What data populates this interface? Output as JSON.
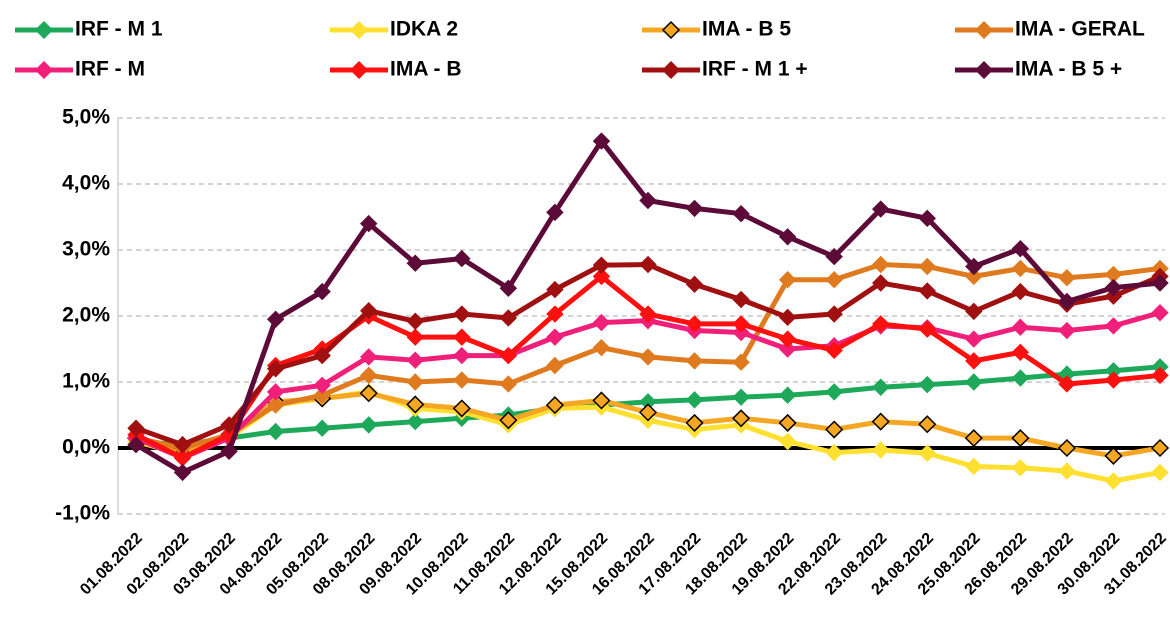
{
  "chart_data": {
    "type": "line",
    "categories": [
      "01.08.2022",
      "02.08.2022",
      "03.08.2022",
      "04.08.2022",
      "05.08.2022",
      "08.08.2022",
      "09.08.2022",
      "10.08.2022",
      "11.08.2022",
      "12.08.2022",
      "15.08.2022",
      "16.08.2022",
      "17.08.2022",
      "18.08.2022",
      "19.08.2022",
      "22.08.2022",
      "23.08.2022",
      "24.08.2022",
      "25.08.2022",
      "26.08.2022",
      "29.08.2022",
      "30.08.2022",
      "31.08.2022"
    ],
    "ylim": [
      -1,
      5
    ],
    "yticks": [
      {
        "value": -1,
        "label": "-1,0%"
      },
      {
        "value": 0,
        "label": "0,0%"
      },
      {
        "value": 1,
        "label": "1,0%"
      },
      {
        "value": 2,
        "label": "2,0%"
      },
      {
        "value": 3,
        "label": "3,0%"
      },
      {
        "value": 4,
        "label": "4,0%"
      },
      {
        "value": 5,
        "label": "5,0%"
      }
    ],
    "grid": true,
    "series": [
      {
        "name": "IRF - M 1",
        "color": "#1ea85a",
        "values": [
          0.1,
          0.05,
          0.15,
          0.25,
          0.3,
          0.35,
          0.4,
          0.45,
          0.5,
          0.6,
          0.65,
          0.7,
          0.73,
          0.77,
          0.8,
          0.85,
          0.92,
          0.96,
          1.0,
          1.06,
          1.12,
          1.17,
          1.23
        ]
      },
      {
        "name": "IDKA 2",
        "color": "#ffe030",
        "values": [
          0.1,
          -0.1,
          0.15,
          0.65,
          0.75,
          0.85,
          0.6,
          0.55,
          0.35,
          0.6,
          0.62,
          0.42,
          0.28,
          0.35,
          0.1,
          -0.07,
          -0.03,
          -0.08,
          -0.28,
          -0.3,
          -0.35,
          -0.5,
          -0.37
        ]
      },
      {
        "name": "IMA - B 5",
        "color": "#f5a623",
        "marker_edge": "#000000",
        "values": [
          0.15,
          -0.1,
          0.2,
          0.7,
          0.75,
          0.83,
          0.66,
          0.6,
          0.42,
          0.65,
          0.72,
          0.54,
          0.38,
          0.45,
          0.38,
          0.28,
          0.4,
          0.36,
          0.15,
          0.15,
          0,
          -0.12,
          0
        ]
      },
      {
        "name": "IMA - GERAL",
        "color": "#e07a1e",
        "values": [
          0.15,
          0,
          0.2,
          0.65,
          0.8,
          1.1,
          1.0,
          1.03,
          0.97,
          1.25,
          1.52,
          1.38,
          1.32,
          1.3,
          2.55,
          2.55,
          2.78,
          2.75,
          2.6,
          2.72,
          2.58,
          2.63,
          2.72
        ]
      },
      {
        "name": "IRF - M",
        "color": "#f0207a",
        "values": [
          0.15,
          -0.15,
          0.15,
          0.85,
          0.95,
          1.38,
          1.33,
          1.4,
          1.4,
          1.68,
          1.9,
          1.93,
          1.78,
          1.75,
          1.5,
          1.55,
          1.85,
          1.82,
          1.65,
          1.83,
          1.78,
          1.85,
          2.05
        ]
      },
      {
        "name": "IMA - B",
        "color": "#ff1010",
        "values": [
          0.2,
          -0.15,
          0.2,
          1.25,
          1.5,
          2.0,
          1.68,
          1.68,
          1.4,
          2.03,
          2.6,
          2.03,
          1.88,
          1.88,
          1.65,
          1.48,
          1.88,
          1.8,
          1.32,
          1.45,
          0.97,
          1.03,
          1.1
        ]
      },
      {
        "name": "IRF - M 1 +",
        "color": "#a01010",
        "values": [
          0.3,
          0.05,
          0.35,
          1.2,
          1.4,
          2.08,
          1.92,
          2.03,
          1.97,
          2.4,
          2.77,
          2.78,
          2.48,
          2.25,
          1.98,
          2.03,
          2.5,
          2.38,
          2.07,
          2.37,
          2.18,
          2.3,
          2.6
        ]
      },
      {
        "name": "IMA - B 5 +",
        "color": "#5c0a38",
        "values": [
          0.05,
          -0.37,
          -0.05,
          1.95,
          2.37,
          3.4,
          2.8,
          2.87,
          2.42,
          3.57,
          4.65,
          3.75,
          3.63,
          3.55,
          3.2,
          2.9,
          3.62,
          3.48,
          2.75,
          3.02,
          2.22,
          2.43,
          2.5
        ]
      }
    ]
  }
}
